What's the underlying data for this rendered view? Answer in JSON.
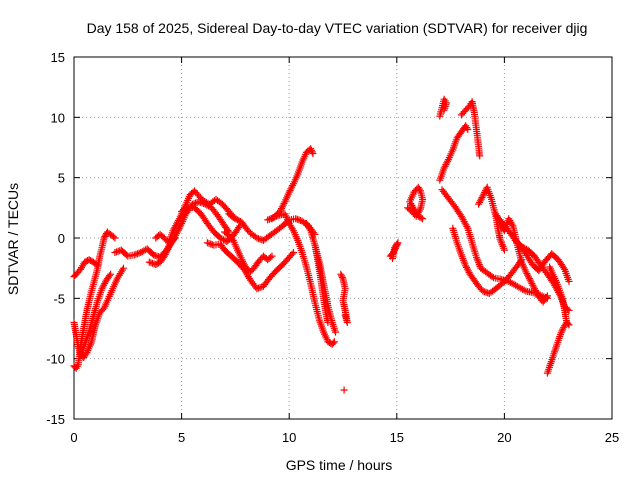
{
  "chart_data": {
    "type": "scatter",
    "title": "Day 158 of 2025, Sidereal Day-to-day VTEC variation (SDTVAR) for receiver djig",
    "xlabel": "GPS time / hours",
    "ylabel": "SDTVAR / TECUs",
    "xlim": [
      0,
      25
    ],
    "ylim": [
      -15,
      15
    ],
    "xticks": [
      0,
      5,
      10,
      15,
      20,
      25
    ],
    "yticks": [
      -15,
      -10,
      -5,
      0,
      5,
      10,
      15
    ],
    "grid": true,
    "marker": "+",
    "color": "#ff0000",
    "segments": [
      [
        [
          0.0,
          -3.2
        ],
        [
          0.1,
          -3.0
        ],
        [
          0.3,
          -2.6
        ],
        [
          0.5,
          -2.0
        ],
        [
          0.7,
          -1.8
        ],
        [
          0.9,
          -2.0
        ],
        [
          1.1,
          -2.3
        ]
      ],
      [
        [
          0.0,
          -7.0
        ],
        [
          0.1,
          -8.0
        ],
        [
          0.2,
          -9.0
        ],
        [
          0.3,
          -9.6
        ],
        [
          0.45,
          -9.9
        ],
        [
          0.6,
          -9.5
        ],
        [
          0.8,
          -8.7
        ],
        [
          1.0,
          -7.2
        ],
        [
          1.2,
          -6.2
        ],
        [
          1.4,
          -5.8
        ],
        [
          1.6,
          -5.0
        ],
        [
          1.8,
          -4.2
        ],
        [
          2.0,
          -3.4
        ],
        [
          2.2,
          -2.8
        ],
        [
          2.3,
          -2.5
        ]
      ],
      [
        [
          0.0,
          -10.6
        ],
        [
          0.1,
          -10.8
        ],
        [
          0.2,
          -10.5
        ],
        [
          0.3,
          -9.0
        ],
        [
          0.45,
          -7.5
        ],
        [
          0.6,
          -6.0
        ],
        [
          0.8,
          -4.5
        ],
        [
          0.95,
          -3.5
        ],
        [
          1.1,
          -2.5
        ],
        [
          1.2,
          -1.5
        ],
        [
          1.3,
          -0.8
        ],
        [
          1.4,
          0.0
        ],
        [
          1.55,
          0.5
        ],
        [
          1.7,
          0.3
        ],
        [
          1.9,
          0.0
        ]
      ],
      [
        [
          0.3,
          -9.8
        ],
        [
          0.5,
          -8.8
        ],
        [
          0.7,
          -7.8
        ],
        [
          0.9,
          -6.5
        ],
        [
          1.1,
          -5.2
        ],
        [
          1.3,
          -4.2
        ],
        [
          1.5,
          -3.5
        ],
        [
          1.7,
          -3.0
        ]
      ],
      [
        [
          1.9,
          -1.2
        ],
        [
          2.2,
          -1.0
        ],
        [
          2.5,
          -1.5
        ],
        [
          2.8,
          -1.4
        ],
        [
          3.1,
          -1.2
        ],
        [
          3.4,
          -0.9
        ],
        [
          3.7,
          -1.4
        ],
        [
          4.0,
          -1.6
        ],
        [
          4.3,
          -1.0
        ],
        [
          4.5,
          -0.4
        ],
        [
          4.7,
          0.0
        ]
      ],
      [
        [
          3.5,
          -2.0
        ],
        [
          3.8,
          -2.2
        ],
        [
          4.0,
          -2.0
        ],
        [
          4.2,
          -1.5
        ],
        [
          4.4,
          -0.8
        ],
        [
          4.6,
          -0.2
        ],
        [
          4.8,
          0.5
        ],
        [
          5.0,
          1.2
        ],
        [
          5.2,
          2.0
        ],
        [
          5.5,
          2.8
        ],
        [
          5.8,
          3.0
        ],
        [
          6.1,
          2.8
        ],
        [
          6.4,
          2.5
        ],
        [
          6.7,
          1.8
        ],
        [
          7.0,
          1.0
        ],
        [
          7.2,
          0.5
        ]
      ],
      [
        [
          3.8,
          0.0
        ],
        [
          4.0,
          0.3
        ],
        [
          4.2,
          0.0
        ],
        [
          4.4,
          -0.4
        ],
        [
          4.6,
          0.6
        ],
        [
          4.9,
          1.6
        ],
        [
          5.2,
          2.8
        ],
        [
          5.4,
          3.6
        ],
        [
          5.6,
          3.9
        ],
        [
          5.8,
          3.5
        ],
        [
          6.0,
          3.1
        ],
        [
          6.3,
          2.8
        ],
        [
          6.6,
          3.2
        ],
        [
          6.9,
          2.8
        ],
        [
          7.2,
          2.2
        ],
        [
          7.4,
          1.8
        ]
      ],
      [
        [
          5.0,
          2.2
        ],
        [
          5.3,
          2.6
        ],
        [
          5.6,
          2.5
        ],
        [
          5.9,
          2.0
        ],
        [
          6.2,
          1.2
        ],
        [
          6.5,
          0.5
        ],
        [
          6.8,
          0.0
        ],
        [
          7.1,
          -0.3
        ],
        [
          7.4,
          0.2
        ],
        [
          7.7,
          1.0
        ]
      ],
      [
        [
          6.2,
          -0.4
        ],
        [
          6.5,
          -0.6
        ],
        [
          6.8,
          -0.5
        ],
        [
          7.0,
          -1.0
        ],
        [
          7.3,
          -1.5
        ],
        [
          7.6,
          -2.0
        ],
        [
          7.9,
          -2.6
        ],
        [
          8.2,
          -3.5
        ],
        [
          8.5,
          -4.2
        ],
        [
          8.8,
          -4.0
        ],
        [
          9.1,
          -3.3
        ],
        [
          9.4,
          -2.7
        ],
        [
          9.7,
          -2.2
        ],
        [
          10.0,
          -1.6
        ],
        [
          10.2,
          -1.2
        ]
      ],
      [
        [
          7.0,
          0.5
        ],
        [
          7.2,
          0.2
        ],
        [
          7.4,
          -0.2
        ],
        [
          7.6,
          -1.0
        ],
        [
          7.8,
          -1.8
        ],
        [
          8.0,
          -2.5
        ],
        [
          8.2,
          -2.8
        ],
        [
          8.4,
          -2.4
        ],
        [
          8.6,
          -1.9
        ],
        [
          8.8,
          -1.5
        ],
        [
          9.0,
          -1.8
        ],
        [
          9.2,
          -1.5
        ]
      ],
      [
        [
          7.2,
          2.0
        ],
        [
          7.4,
          1.7
        ],
        [
          7.6,
          1.5
        ],
        [
          7.8,
          1.3
        ],
        [
          8.0,
          0.8
        ],
        [
          8.2,
          0.4
        ],
        [
          8.5,
          0.0
        ],
        [
          8.8,
          -0.2
        ],
        [
          9.1,
          0.2
        ],
        [
          9.4,
          0.6
        ],
        [
          9.7,
          1.0
        ],
        [
          10.0,
          1.5
        ],
        [
          10.3,
          1.6
        ],
        [
          10.6,
          1.4
        ],
        [
          10.9,
          1.0
        ],
        [
          11.2,
          0.3
        ]
      ],
      [
        [
          9.2,
          1.6
        ],
        [
          9.4,
          1.9
        ],
        [
          9.6,
          2.3
        ],
        [
          9.8,
          3.0
        ],
        [
          10.0,
          3.8
        ],
        [
          10.2,
          4.5
        ],
        [
          10.4,
          5.3
        ],
        [
          10.6,
          6.3
        ],
        [
          10.8,
          7.1
        ],
        [
          11.0,
          7.4
        ],
        [
          11.1,
          7.0
        ]
      ],
      [
        [
          9.0,
          1.5
        ],
        [
          9.4,
          1.8
        ],
        [
          9.8,
          2.0
        ],
        [
          10.0,
          1.2
        ],
        [
          10.2,
          0.6
        ],
        [
          10.4,
          -0.2
        ],
        [
          10.6,
          -1.2
        ],
        [
          10.8,
          -2.4
        ],
        [
          11.0,
          -3.8
        ],
        [
          11.2,
          -5.4
        ],
        [
          11.4,
          -6.8
        ],
        [
          11.6,
          -7.8
        ],
        [
          11.8,
          -8.6
        ],
        [
          12.0,
          -8.8
        ],
        [
          12.1,
          -8.6
        ]
      ],
      [
        [
          10.8,
          1.2
        ],
        [
          11.0,
          0.6
        ],
        [
          11.2,
          -0.6
        ],
        [
          11.4,
          -2.0
        ],
        [
          11.6,
          -3.8
        ],
        [
          11.8,
          -5.6
        ],
        [
          12.0,
          -7.0
        ],
        [
          12.15,
          -7.8
        ]
      ],
      [
        [
          11.2,
          -0.6
        ],
        [
          11.3,
          -1.6
        ],
        [
          11.4,
          -2.6
        ],
        [
          11.5,
          -3.8
        ],
        [
          11.6,
          -5.0
        ],
        [
          11.7,
          -6.2
        ],
        [
          11.8,
          -7.0
        ]
      ],
      [
        [
          12.4,
          -3.0
        ],
        [
          12.5,
          -3.4
        ],
        [
          12.6,
          -4.2
        ],
        [
          12.5,
          -5.2
        ],
        [
          12.6,
          -6.0
        ],
        [
          12.7,
          -7.0
        ],
        [
          12.6,
          -6.4
        ]
      ],
      [
        [
          12.55,
          -12.6
        ]
      ],
      [
        [
          14.7,
          -1.5
        ],
        [
          14.8,
          -1.3
        ],
        [
          14.9,
          -1.0
        ],
        [
          15.0,
          -0.6
        ],
        [
          15.05,
          -0.4
        ],
        [
          14.9,
          -0.8
        ],
        [
          14.8,
          -1.7
        ]
      ],
      [
        [
          15.5,
          2.5
        ],
        [
          15.7,
          2.2
        ],
        [
          15.9,
          1.8
        ],
        [
          16.1,
          2.4
        ],
        [
          16.2,
          3.2
        ],
        [
          16.1,
          3.9
        ],
        [
          16.0,
          4.2
        ],
        [
          15.8,
          3.8
        ],
        [
          15.6,
          3.0
        ],
        [
          15.8,
          2.4
        ],
        [
          16.0,
          1.8
        ],
        [
          16.2,
          1.6
        ]
      ],
      [
        [
          17.0,
          4.8
        ],
        [
          17.2,
          5.8
        ],
        [
          17.4,
          6.5
        ],
        [
          17.6,
          7.3
        ],
        [
          17.8,
          8.3
        ],
        [
          18.0,
          8.8
        ],
        [
          18.2,
          9.3
        ],
        [
          18.3,
          9.0
        ]
      ],
      [
        [
          17.0,
          10.1
        ],
        [
          17.1,
          10.8
        ],
        [
          17.2,
          11.5
        ],
        [
          17.3,
          11.2
        ],
        [
          17.2,
          10.6
        ]
      ],
      [
        [
          18.0,
          10.2
        ],
        [
          18.2,
          10.6
        ],
        [
          18.4,
          11.0
        ],
        [
          18.5,
          11.3
        ],
        [
          18.6,
          10.4
        ],
        [
          18.7,
          9.0
        ],
        [
          18.8,
          7.6
        ],
        [
          18.85,
          6.8
        ]
      ],
      [
        [
          17.1,
          4.0
        ],
        [
          17.4,
          3.3
        ],
        [
          17.7,
          2.6
        ],
        [
          18.0,
          1.8
        ],
        [
          18.3,
          0.8
        ],
        [
          18.5,
          -0.4
        ],
        [
          18.7,
          -1.6
        ],
        [
          18.9,
          -2.5
        ],
        [
          19.2,
          -2.9
        ],
        [
          19.5,
          -3.3
        ],
        [
          19.8,
          -3.4
        ],
        [
          20.2,
          -3.6
        ],
        [
          20.6,
          -4.0
        ],
        [
          21.0,
          -4.4
        ],
        [
          21.5,
          -4.6
        ],
        [
          22.0,
          -5.0
        ]
      ],
      [
        [
          17.6,
          0.8
        ],
        [
          17.8,
          -0.4
        ],
        [
          18.0,
          -1.4
        ],
        [
          18.2,
          -2.3
        ],
        [
          18.4,
          -3.0
        ],
        [
          18.6,
          -3.5
        ],
        [
          18.8,
          -4.0
        ],
        [
          19.0,
          -4.4
        ],
        [
          19.3,
          -4.6
        ],
        [
          19.6,
          -4.2
        ],
        [
          20.0,
          -3.6
        ],
        [
          20.3,
          -3.0
        ],
        [
          20.6,
          -2.3
        ],
        [
          20.8,
          -1.8
        ]
      ],
      [
        [
          18.8,
          2.8
        ],
        [
          19.0,
          3.5
        ],
        [
          19.2,
          4.2
        ],
        [
          19.4,
          3.2
        ],
        [
          19.6,
          1.8
        ],
        [
          19.7,
          0.8
        ],
        [
          19.8,
          -0.1
        ],
        [
          20.0,
          -1.0
        ]
      ],
      [
        [
          19.6,
          2.0
        ],
        [
          19.8,
          1.3
        ],
        [
          20.0,
          0.6
        ],
        [
          20.2,
          1.6
        ],
        [
          20.4,
          1.0
        ],
        [
          20.6,
          -0.6
        ],
        [
          20.8,
          -2.0
        ],
        [
          21.0,
          -2.8
        ],
        [
          21.2,
          -3.5
        ],
        [
          21.4,
          -4.2
        ],
        [
          21.6,
          -4.9
        ],
        [
          21.8,
          -5.3
        ],
        [
          22.0,
          -4.8
        ]
      ],
      [
        [
          19.8,
          1.5
        ],
        [
          20.1,
          0.8
        ],
        [
          20.4,
          0.1
        ],
        [
          20.7,
          -0.6
        ],
        [
          21.0,
          -1.3
        ],
        [
          21.3,
          -2.2
        ],
        [
          21.6,
          -2.7
        ],
        [
          21.9,
          -1.9
        ],
        [
          22.2,
          -1.3
        ],
        [
          22.5,
          -1.8
        ],
        [
          22.8,
          -2.6
        ],
        [
          23.0,
          -3.6
        ]
      ],
      [
        [
          20.5,
          -0.2
        ],
        [
          20.8,
          -0.7
        ],
        [
          21.1,
          -1.0
        ],
        [
          21.4,
          -1.5
        ],
        [
          21.7,
          -2.3
        ],
        [
          22.0,
          -3.0
        ],
        [
          22.3,
          -3.8
        ],
        [
          22.6,
          -4.8
        ],
        [
          22.8,
          -5.7
        ],
        [
          23.0,
          -6.0
        ]
      ],
      [
        [
          22.1,
          -2.4
        ],
        [
          22.3,
          -3.2
        ],
        [
          22.5,
          -4.0
        ],
        [
          22.7,
          -5.0
        ],
        [
          22.8,
          -6.0
        ],
        [
          22.9,
          -7.0
        ],
        [
          23.0,
          -7.2
        ]
      ],
      [
        [
          22.0,
          -11.2
        ],
        [
          22.15,
          -10.4
        ],
        [
          22.3,
          -9.6
        ],
        [
          22.45,
          -8.8
        ],
        [
          22.6,
          -8.0
        ],
        [
          22.75,
          -7.4
        ],
        [
          22.9,
          -7.0
        ]
      ]
    ]
  }
}
